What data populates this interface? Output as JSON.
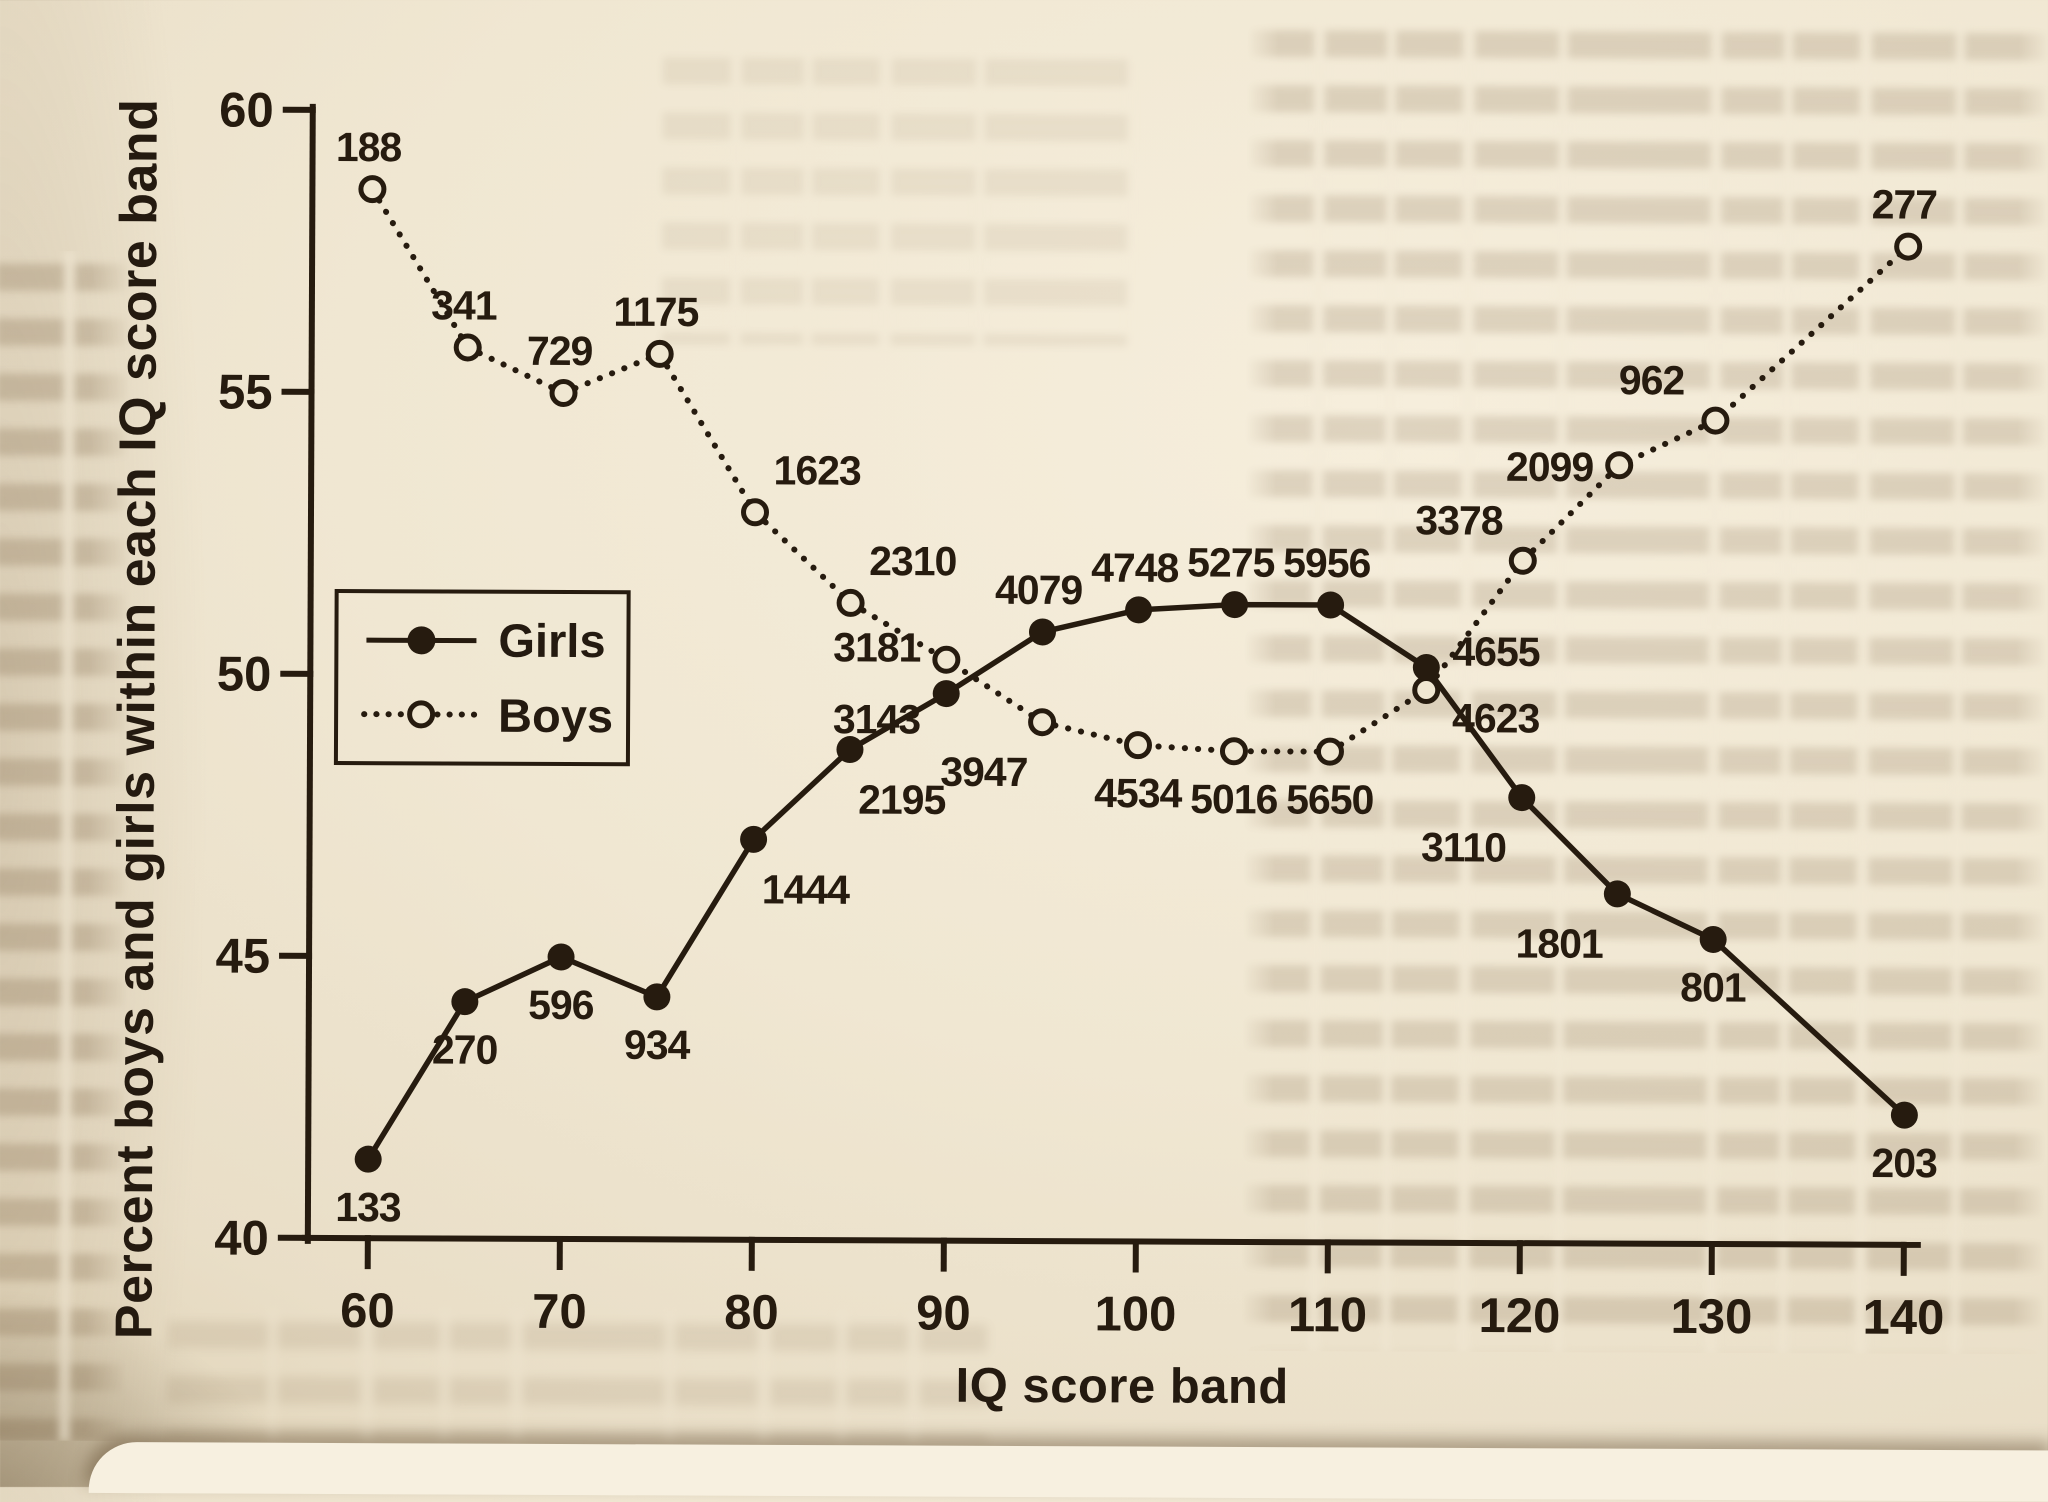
{
  "colors": {
    "ink": "#261b0f",
    "paper": "#f0e7d2",
    "paper_bright": "#f7f0e0",
    "paper_edge": "#d9cbac",
    "ghost_text": "#684e2e"
  },
  "legend": {
    "girls_label": "Girls",
    "boys_label": "Boys"
  },
  "chart_data": {
    "type": "line",
    "title": "",
    "xlabel": "IQ score band",
    "ylabel": "Percent boys and girls within each IQ score band",
    "xlim": [
      55,
      145
    ],
    "ylim": [
      40,
      60
    ],
    "x_ticks": [
      60,
      70,
      80,
      90,
      100,
      110,
      120,
      130,
      140
    ],
    "y_ticks": [
      40,
      45,
      50,
      55,
      60
    ],
    "grid": false,
    "legend_position": "upper-left-box",
    "x": [
      60,
      65,
      70,
      75,
      80,
      85,
      90,
      95,
      100,
      105,
      110,
      115,
      120,
      125,
      130,
      140
    ],
    "series": [
      {
        "name": "Girls",
        "marker": "filled-circle",
        "line": "solid",
        "counts": [
          133,
          270,
          596,
          934,
          1444,
          2195,
          3143,
          4079,
          4748,
          5275,
          5956,
          4655,
          3110,
          1801,
          801,
          203
        ],
        "percent": [
          41.4,
          44.2,
          45.0,
          44.3,
          47.1,
          48.7,
          49.7,
          50.8,
          51.2,
          51.3,
          51.3,
          50.2,
          47.9,
          46.2,
          45.4,
          42.3
        ],
        "label_pos": [
          "below",
          "below",
          "below",
          "below",
          "below-right",
          "below-right",
          "left-down",
          "above",
          "above",
          "above",
          "above",
          "right-up",
          "below-left",
          "below-left",
          "below",
          "below"
        ]
      },
      {
        "name": "Boys",
        "marker": "open-circle",
        "line": "dotted",
        "counts": [
          188,
          341,
          729,
          1175,
          1623,
          2310,
          3181,
          3947,
          4534,
          5016,
          5650,
          4623,
          3378,
          2099,
          962,
          277
        ],
        "percent": [
          58.6,
          55.8,
          55.0,
          55.7,
          52.9,
          51.3,
          50.3,
          49.2,
          48.8,
          48.7,
          48.7,
          49.8,
          52.1,
          53.8,
          54.6,
          57.7
        ],
        "label_pos": [
          "above",
          "above",
          "above",
          "above",
          "above-right",
          "above-right",
          "left-up",
          "below-left",
          "below",
          "below",
          "below",
          "right-down",
          "above-left",
          "left",
          "above-left",
          "above"
        ]
      }
    ]
  }
}
